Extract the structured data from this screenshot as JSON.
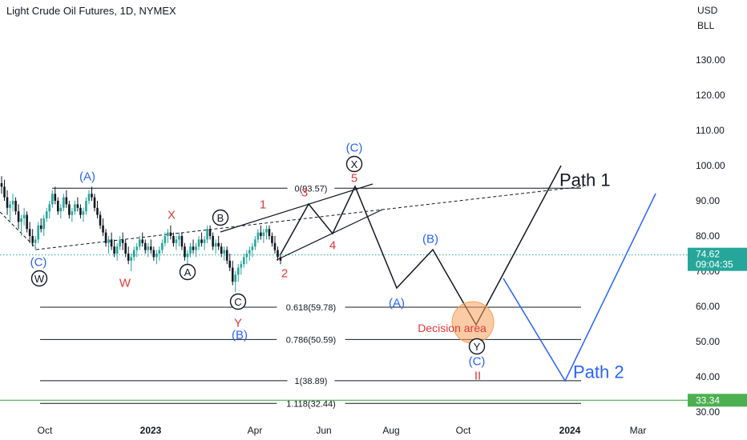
{
  "header": {
    "title": "Light Crude Oil Futures, 1D, NYMEX"
  },
  "axis": {
    "currency": "USD",
    "unit": "BLL"
  },
  "colors": {
    "grid": "#131722",
    "black": "#131722",
    "blue": "#2962ff",
    "red": "#e53935",
    "green": "#26a69a",
    "green_line": "#4caf50",
    "decision": "#f5a05a"
  },
  "chart_data": {
    "type": "candlestick",
    "title": "Light Crude Oil Futures, 1D, NYMEX",
    "ylim": [
      28,
      150
    ],
    "y_ticks": [
      130,
      120,
      110,
      100,
      90,
      80,
      70,
      60,
      50,
      40,
      30
    ],
    "y_tick_labels": [
      "130.00",
      "120.00",
      "110.00",
      "100.00",
      "90.00",
      "80.00",
      "70.00",
      "60.00",
      "50.00",
      "40.00",
      "30.00"
    ],
    "x_ticks": [
      "Oct",
      "2023",
      "Apr",
      "Jun",
      "Aug",
      "Oct",
      "2024",
      "Mar"
    ],
    "current_price": {
      "value": 74.62,
      "label": "74.62",
      "countdown": "09:04:35"
    },
    "green_level": {
      "value": 33.34,
      "label": "33.34"
    },
    "fib_levels": [
      {
        "ratio": "0",
        "value": 93.57,
        "label": "0(93.57)"
      },
      {
        "ratio": "0.618",
        "value": 59.78,
        "label": "0.618(59.78)"
      },
      {
        "ratio": "0.786",
        "value": 50.59,
        "label": "0.786(50.59)"
      },
      {
        "ratio": "1",
        "value": 38.89,
        "label": "1(38.89)"
      },
      {
        "ratio": "1.118",
        "value": 32.44,
        "label": "1.118(32.44)"
      }
    ],
    "candles": [
      [
        95,
        97,
        92,
        94
      ],
      [
        94,
        96,
        90,
        91
      ],
      [
        91,
        93,
        86,
        88
      ],
      [
        88,
        90,
        84,
        89
      ],
      [
        89,
        92,
        87,
        90
      ],
      [
        90,
        91,
        86,
        87
      ],
      [
        87,
        89,
        82,
        84
      ],
      [
        84,
        86,
        80,
        85
      ],
      [
        85,
        88,
        83,
        86
      ],
      [
        86,
        87,
        81,
        82
      ],
      [
        82,
        84,
        78,
        80
      ],
      [
        80,
        82,
        77,
        78
      ],
      [
        78,
        80,
        76,
        79
      ],
      [
        79,
        84,
        78,
        83
      ],
      [
        83,
        85,
        81,
        82
      ],
      [
        82,
        86,
        80,
        85
      ],
      [
        85,
        88,
        84,
        87
      ],
      [
        87,
        90,
        85,
        89
      ],
      [
        89,
        93,
        88,
        92
      ],
      [
        92,
        94,
        89,
        90
      ],
      [
        90,
        91,
        86,
        87
      ],
      [
        87,
        89,
        85,
        88
      ],
      [
        88,
        92,
        87,
        91
      ],
      [
        91,
        93,
        88,
        89
      ],
      [
        89,
        90,
        85,
        86
      ],
      [
        86,
        88,
        84,
        87
      ],
      [
        87,
        90,
        86,
        89
      ],
      [
        89,
        91,
        87,
        88
      ],
      [
        88,
        89,
        85,
        86
      ],
      [
        86,
        88,
        84,
        87
      ],
      [
        87,
        91,
        86,
        90
      ],
      [
        90,
        93,
        89,
        92
      ],
      [
        92,
        94,
        90,
        91
      ],
      [
        91,
        92,
        87,
        88
      ],
      [
        88,
        90,
        85,
        86
      ],
      [
        86,
        87,
        82,
        83
      ],
      [
        83,
        85,
        80,
        81
      ],
      [
        81,
        82,
        77,
        78
      ],
      [
        78,
        80,
        75,
        79
      ],
      [
        79,
        81,
        76,
        77
      ],
      [
        77,
        79,
        74,
        75
      ],
      [
        75,
        78,
        73,
        77
      ],
      [
        77,
        80,
        76,
        79
      ],
      [
        79,
        81,
        76,
        78
      ],
      [
        78,
        79,
        74,
        75
      ],
      [
        75,
        77,
        72,
        73
      ],
      [
        73,
        75,
        70,
        74
      ],
      [
        74,
        77,
        73,
        76
      ],
      [
        76,
        78,
        74,
        77
      ],
      [
        77,
        80,
        76,
        79
      ],
      [
        79,
        81,
        77,
        78
      ],
      [
        78,
        79,
        75,
        76
      ],
      [
        76,
        78,
        74,
        77
      ],
      [
        77,
        79,
        75,
        76
      ],
      [
        76,
        77,
        73,
        74
      ],
      [
        74,
        76,
        72,
        75
      ],
      [
        75,
        77,
        73,
        76
      ],
      [
        76,
        79,
        75,
        78
      ],
      [
        78,
        81,
        77,
        80
      ],
      [
        80,
        82,
        78,
        81
      ],
      [
        81,
        83,
        79,
        80
      ],
      [
        80,
        81,
        77,
        78
      ],
      [
        78,
        80,
        76,
        79
      ],
      [
        79,
        81,
        77,
        80
      ],
      [
        80,
        81,
        76,
        77
      ],
      [
        77,
        78,
        73,
        74
      ],
      [
        74,
        76,
        72,
        75
      ],
      [
        75,
        78,
        74,
        77
      ],
      [
        77,
        79,
        75,
        76
      ],
      [
        76,
        78,
        74,
        77
      ],
      [
        77,
        80,
        76,
        79
      ],
      [
        79,
        81,
        77,
        78
      ],
      [
        78,
        80,
        76,
        79
      ],
      [
        79,
        83,
        78,
        82
      ],
      [
        82,
        83,
        79,
        80
      ],
      [
        80,
        81,
        76,
        77
      ],
      [
        77,
        79,
        75,
        78
      ],
      [
        78,
        80,
        76,
        77
      ],
      [
        77,
        78,
        74,
        75
      ],
      [
        75,
        77,
        73,
        76
      ],
      [
        76,
        77,
        72,
        73
      ],
      [
        73,
        75,
        70,
        71
      ],
      [
        71,
        73,
        66,
        67
      ],
      [
        67,
        70,
        64,
        69
      ],
      [
        69,
        72,
        67,
        71
      ],
      [
        71,
        73,
        69,
        72
      ],
      [
        72,
        75,
        71,
        74
      ],
      [
        74,
        76,
        72,
        75
      ],
      [
        75,
        77,
        73,
        76
      ],
      [
        76,
        78,
        74,
        77
      ],
      [
        77,
        80,
        76,
        79
      ],
      [
        79,
        82,
        78,
        81
      ],
      [
        81,
        83,
        79,
        80
      ],
      [
        80,
        82,
        78,
        81
      ],
      [
        81,
        83,
        79,
        82
      ],
      [
        82,
        83,
        79,
        80
      ],
      [
        80,
        81,
        77,
        78
      ],
      [
        78,
        80,
        75,
        76
      ],
      [
        76,
        77,
        73,
        74
      ],
      [
        74,
        75,
        72,
        73
      ]
    ],
    "paths": [
      {
        "name": "Path 1",
        "points": [
          [
            350,
            318
          ],
          [
            385,
            255
          ],
          [
            415,
            292
          ],
          [
            443,
            233
          ],
          [
            495,
            360
          ],
          [
            540,
            312
          ],
          [
            594,
            406
          ],
          [
            700,
            207
          ]
        ]
      },
      {
        "name": "Path 2",
        "points": [
          [
            628,
            348
          ],
          [
            705,
            476
          ],
          [
            818,
            242
          ]
        ]
      }
    ],
    "annotations": [
      {
        "text": "(A)",
        "color": "blue",
        "x": 109,
        "y": 220
      },
      {
        "text": "(C)",
        "color": "blue",
        "x": 48,
        "y": 327
      },
      {
        "text": "W",
        "color": "black",
        "x": 49,
        "y": 348,
        "circled": true
      },
      {
        "text": "W",
        "color": "red",
        "x": 156,
        "y": 353
      },
      {
        "text": "X",
        "color": "red",
        "x": 214,
        "y": 268
      },
      {
        "text": "B",
        "color": "black",
        "x": 275,
        "y": 272,
        "circled": true
      },
      {
        "text": "A",
        "color": "black",
        "x": 234,
        "y": 340,
        "circled": true
      },
      {
        "text": "C",
        "color": "black",
        "x": 297,
        "y": 377,
        "circled": true
      },
      {
        "text": "Y",
        "color": "red",
        "x": 297,
        "y": 403
      },
      {
        "text": "(B)",
        "color": "blue",
        "x": 299,
        "y": 418
      },
      {
        "text": "1",
        "color": "red",
        "x": 328,
        "y": 255
      },
      {
        "text": "2",
        "color": "red",
        "x": 355,
        "y": 341
      },
      {
        "text": "3",
        "color": "red",
        "x": 380,
        "y": 240
      },
      {
        "text": "4",
        "color": "red",
        "x": 415,
        "y": 306
      },
      {
        "text": "5",
        "color": "red",
        "x": 442,
        "y": 222
      },
      {
        "text": "(C)",
        "color": "blue",
        "x": 442,
        "y": 184
      },
      {
        "text": "X",
        "color": "black",
        "x": 442,
        "y": 205,
        "circled": true
      },
      {
        "text": "(B)",
        "color": "blue",
        "x": 537,
        "y": 298
      },
      {
        "text": "(A)",
        "color": "blue",
        "x": 495,
        "y": 378
      },
      {
        "text": "Y",
        "color": "black",
        "x": 595,
        "y": 433,
        "circled": true
      },
      {
        "text": "(C)",
        "color": "blue",
        "x": 595,
        "y": 451
      },
      {
        "text": "II",
        "color": "red",
        "x": 596,
        "y": 469
      },
      {
        "text": "Decision area",
        "color": "red",
        "x": 564,
        "y": 410
      },
      {
        "text": "Path 1",
        "color": "black",
        "x": 698,
        "y": 225,
        "size": 22
      },
      {
        "text": "Path 2",
        "color": "blue",
        "x": 715,
        "y": 465,
        "size": 22
      }
    ]
  }
}
